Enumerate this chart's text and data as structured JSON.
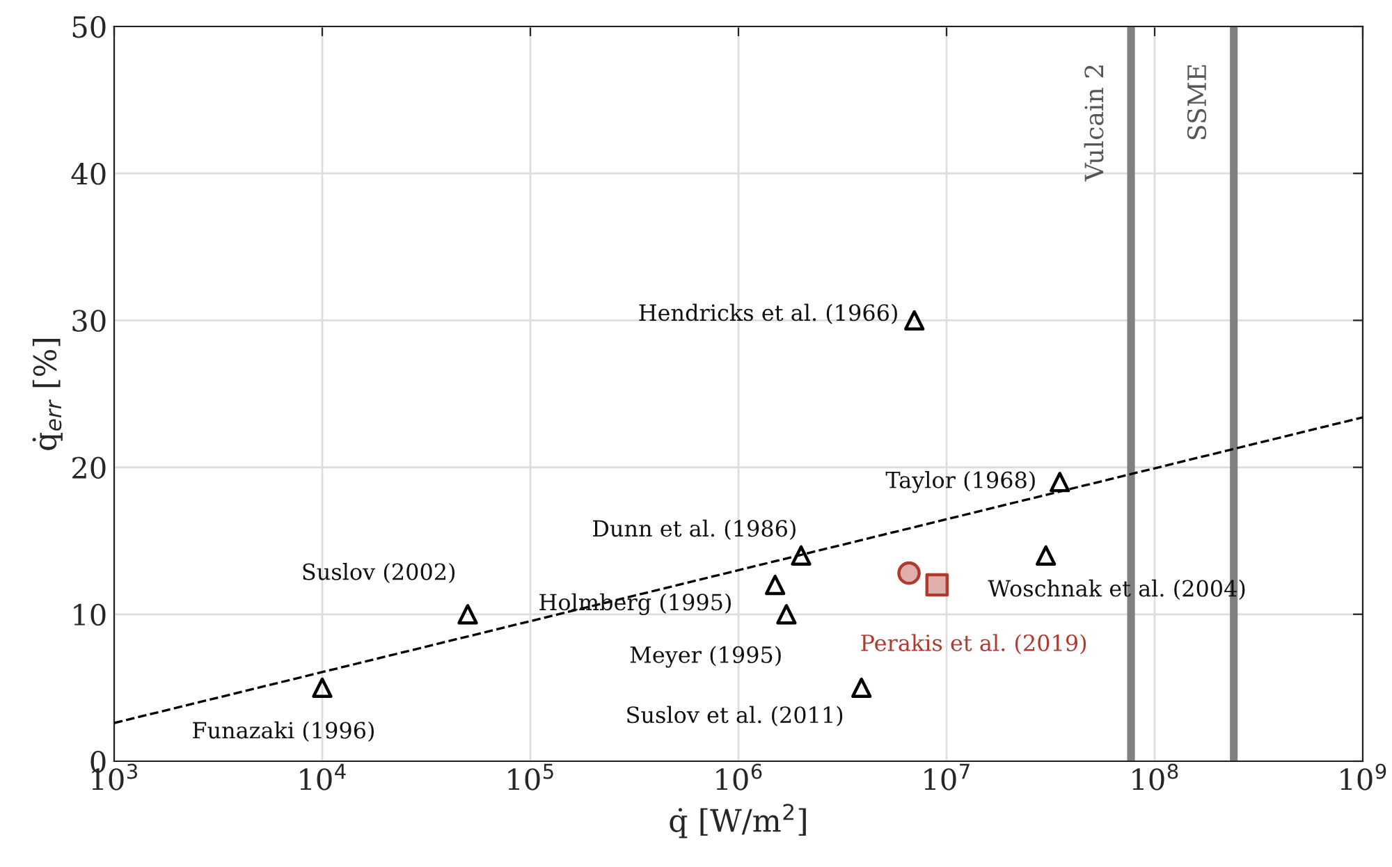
{
  "chart_data": {
    "type": "scatter",
    "xlabel": "q̇ [W/m$^{2}$]",
    "ylabel": "q̇$_{err}$ [%]",
    "log": "x",
    "grid": true,
    "xlim": [
      1000,
      1000000000
    ],
    "ylim": [
      0,
      50
    ],
    "xticks": [
      {
        "value": 1000,
        "label": "10$^{3}$"
      },
      {
        "value": 10000,
        "label": "10$^{4}$"
      },
      {
        "value": 100000,
        "label": "10$^{5}$"
      },
      {
        "value": 1000000,
        "label": "10$^{6}$"
      },
      {
        "value": 10000000,
        "label": "10$^{7}$"
      },
      {
        "value": 100000000,
        "label": "10$^{8}$"
      },
      {
        "value": 1000000000,
        "label": "10$^{9}$"
      }
    ],
    "yticks": [
      0,
      10,
      20,
      30,
      40,
      50
    ],
    "series": [
      {
        "type": "line",
        "x": [
          1000,
          1000000000
        ],
        "values": [
          2.6,
          23.4
        ],
        "color": "#000000",
        "line_style": "dashed",
        "marker": "none"
      },
      {
        "name": "Funazaki (1996)",
        "x": [
          10000
        ],
        "values": [
          5
        ],
        "color": "#000000",
        "marker": "triangle"
      },
      {
        "name": "Suslov (2002)",
        "x": [
          50000
        ],
        "values": [
          10
        ],
        "color": "#000000",
        "marker": "triangle"
      },
      {
        "name": "Holmberg (1995)",
        "x": [
          1500000
        ],
        "values": [
          12
        ],
        "color": "#000000",
        "marker": "triangle"
      },
      {
        "name": "Dunn et al. (1986)",
        "x": [
          2000000
        ],
        "values": [
          14
        ],
        "color": "#000000",
        "marker": "triangle"
      },
      {
        "name": "Meyer (1995)",
        "x": [
          1700000
        ],
        "values": [
          10
        ],
        "color": "#000000",
        "marker": "triangle"
      },
      {
        "name": "Suslov et al. (2011)",
        "x": [
          3900000
        ],
        "values": [
          5
        ],
        "color": "#000000",
        "marker": "triangle"
      },
      {
        "name": "Hendricks et al. (1966)",
        "x": [
          7000000
        ],
        "values": [
          30
        ],
        "color": "#000000",
        "marker": "triangle"
      },
      {
        "name": "Taylor (1968)",
        "x": [
          35000000
        ],
        "values": [
          19
        ],
        "color": "#000000",
        "marker": "triangle"
      },
      {
        "name": "Woschnak et al. (2004)",
        "x": [
          30000000
        ],
        "values": [
          14
        ],
        "color": "#000000",
        "marker": "triangle"
      },
      {
        "x": [
          6600000
        ],
        "values": [
          12.8
        ],
        "color": "#b03a2e",
        "marker": "circle"
      },
      {
        "name": "Perakis et al. (2019)",
        "x": [
          9000000
        ],
        "values": [
          12
        ],
        "color": "#b03a2e",
        "marker": "square"
      }
    ],
    "ref_lines": [
      {
        "axis": "x",
        "value": 77000000,
        "label": "Vulcain 2",
        "color": "#808080"
      },
      {
        "axis": "x",
        "value": 240000000,
        "label": "SSME",
        "color": "#808080"
      }
    ]
  }
}
